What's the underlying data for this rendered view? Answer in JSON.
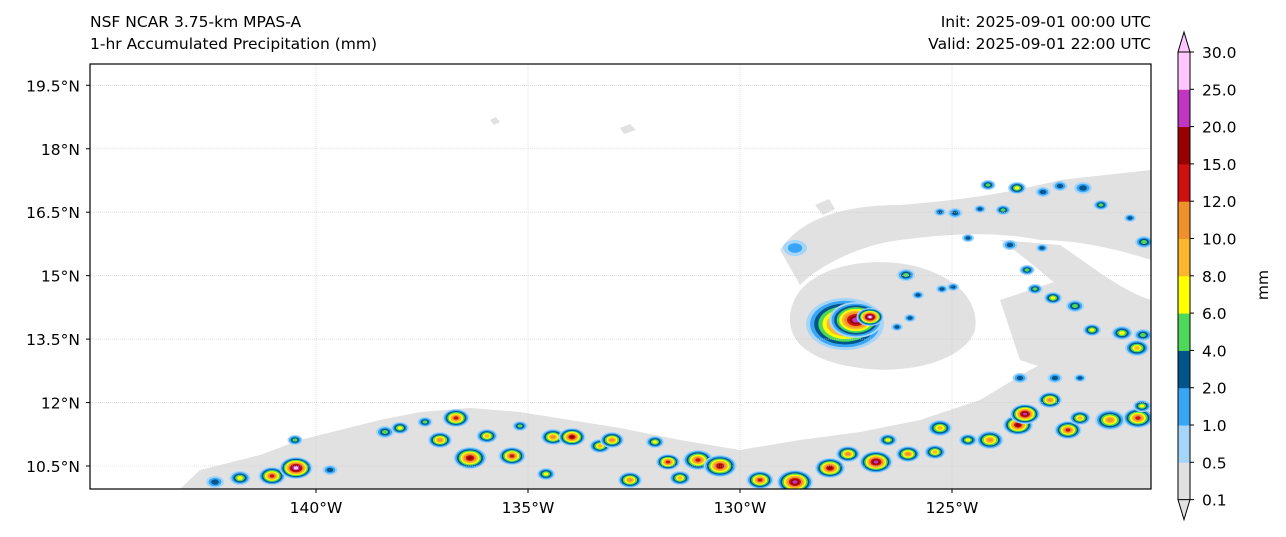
{
  "header": {
    "model": "NSF NCAR 3.75-km MPAS-A",
    "field": "1-hr Accumulated Precipitation (mm)",
    "init": "Init: 2025-09-01 00:00 UTC",
    "valid": "Valid: 2025-09-01 22:00 UTC"
  },
  "chart_data": {
    "type": "heatmap",
    "title": "1-hr Accumulated Precipitation (mm)",
    "xlim_lon": [
      -145.3,
      -120.3
    ],
    "ylim_lat": [
      10.0,
      20.0
    ],
    "x_ticks": [
      {
        "value": -140,
        "label": "140°W"
      },
      {
        "value": -135,
        "label": "135°W"
      },
      {
        "value": -130,
        "label": "130°W"
      },
      {
        "value": -125,
        "label": "125°W"
      }
    ],
    "y_ticks": [
      {
        "value": 19.5,
        "label": "19.5°N"
      },
      {
        "value": 18,
        "label": "18°N"
      },
      {
        "value": 16.5,
        "label": "16.5°N"
      },
      {
        "value": 15,
        "label": "15°N"
      },
      {
        "value": 13.5,
        "label": "13.5°N"
      },
      {
        "value": 12,
        "label": "12°N"
      },
      {
        "value": 10.5,
        "label": "10.5°N"
      }
    ],
    "grid": true,
    "colorbar": {
      "label": "mm",
      "levels": [
        "0.1",
        "0.5",
        "1.0",
        "2.0",
        "4.0",
        "6.0",
        "8.0",
        "10.0",
        "12.0",
        "15.0",
        "20.0",
        "25.0",
        "30.0"
      ],
      "colors": [
        "#e1e1e1",
        "#a6d5fa",
        "#38a5f5",
        "#00568a",
        "#4dd85a",
        "#ffff00",
        "#fbb62c",
        "#f0902a",
        "#d01010",
        "#990000",
        "#c036c0",
        "#ffc6ff"
      ]
    }
  }
}
